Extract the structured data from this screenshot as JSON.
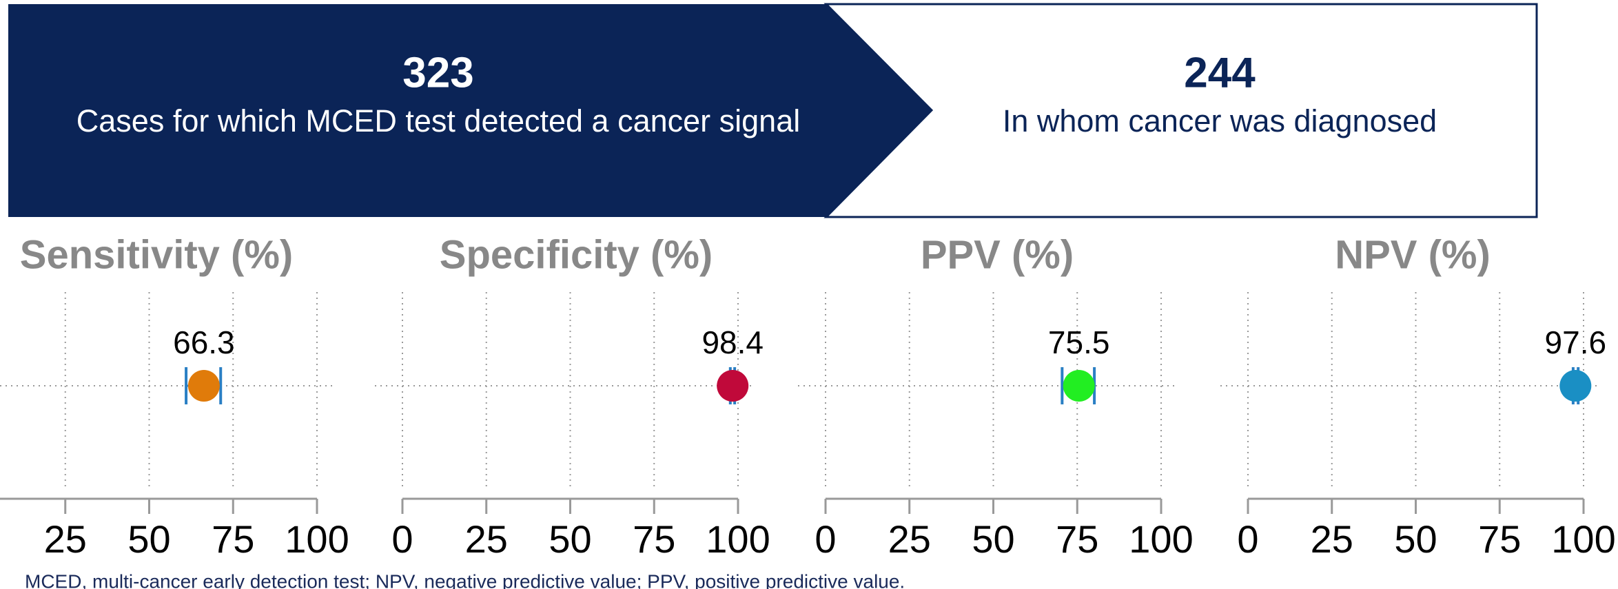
{
  "banner": {
    "steps": [
      {
        "number": "323",
        "label": "Cases for which MCED test detected a cancer signal"
      },
      {
        "number": "244",
        "label": "In whom cancer was diagnosed"
      }
    ]
  },
  "chart_data": [
    {
      "type": "dot",
      "title": "Sensitivity (%)",
      "value": 66.3,
      "ci": [
        61.0,
        71.3
      ],
      "color": "#e07b0a",
      "error_bar_color": "#2a7fc4",
      "xlim": [
        0,
        100
      ],
      "xticks": [
        25,
        50,
        75,
        100
      ],
      "grid": true
    },
    {
      "type": "dot",
      "title": "Specificity (%)",
      "value": 98.4,
      "ci": [
        97.7,
        99.0
      ],
      "color": "#c0093a",
      "error_bar_color": "#2a7fc4",
      "xlim": [
        0,
        100
      ],
      "xticks": [
        0,
        25,
        50,
        75,
        100
      ],
      "grid": true
    },
    {
      "type": "dot",
      "title": "PPV (%)",
      "value": 75.5,
      "ci": [
        70.5,
        80.1
      ],
      "color": "#22ee22",
      "error_bar_color": "#2a7fc4",
      "xlim": [
        0,
        100
      ],
      "xticks": [
        0,
        25,
        50,
        75,
        100
      ],
      "grid": true
    },
    {
      "type": "dot",
      "title": "NPV (%)",
      "value": 97.6,
      "ci": [
        96.9,
        98.4
      ],
      "color": "#1a8fc4",
      "error_bar_color": "#2a7fc4",
      "xlim": [
        0,
        100
      ],
      "xticks": [
        0,
        25,
        50,
        75,
        100
      ],
      "grid": true
    }
  ],
  "footnote": "MCED, multi-cancer early detection test; NPV, negative predictive value; PPV, positive predictive value."
}
